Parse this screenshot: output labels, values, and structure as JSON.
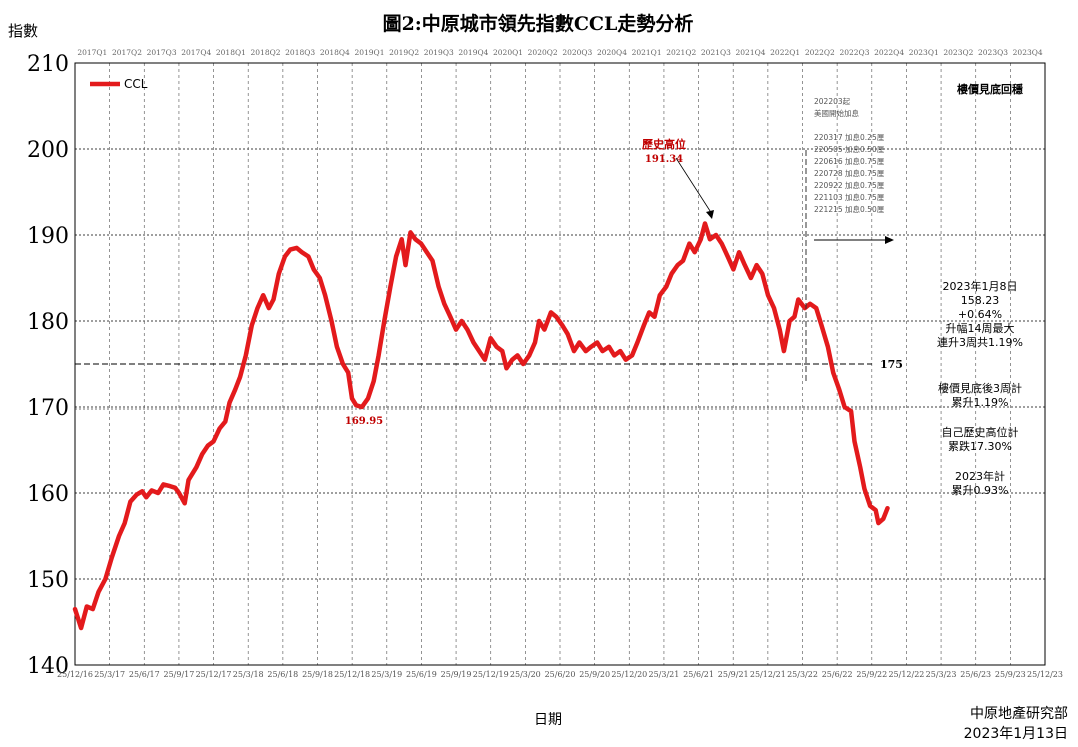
{
  "chart_data": {
    "type": "line",
    "title": "圖2:中原城市領先指數CCL走勢分析",
    "ylabel": "指數",
    "xlabel": "日期",
    "ylim": [
      140,
      210
    ],
    "yticks": [
      140,
      150,
      160,
      170,
      180,
      190,
      200,
      210
    ],
    "xlim": [
      "2016-12-25",
      "2023-12-25"
    ],
    "x_tick_labels": [
      "25/12/16",
      "25/3/17",
      "25/6/17",
      "25/9/17",
      "25/12/17",
      "25/3/18",
      "25/6/18",
      "25/9/18",
      "25/12/18",
      "25/3/19",
      "25/6/19",
      "25/9/19",
      "25/12/19",
      "25/3/20",
      "25/6/20",
      "25/9/20",
      "25/12/20",
      "25/3/21",
      "25/6/21",
      "25/9/21",
      "25/12/21",
      "25/3/22",
      "25/6/22",
      "25/9/22",
      "25/12/22",
      "25/3/23",
      "25/6/23",
      "25/9/23",
      "25/12/23"
    ],
    "quarter_labels": [
      "2017Q1",
      "2017Q2",
      "2017Q3",
      "2017Q4",
      "2018Q1",
      "2018Q2",
      "2018Q3",
      "2018Q4",
      "2019Q1",
      "2019Q2",
      "2019Q3",
      "2019Q4",
      "2020Q1",
      "2020Q2",
      "2020Q3",
      "2020Q4",
      "2021Q1",
      "2021Q2",
      "2021Q3",
      "2021Q4",
      "2022Q1",
      "2022Q2",
      "2022Q3",
      "2022Q4",
      "2023Q1",
      "2023Q2",
      "2023Q3",
      "2023Q4"
    ],
    "grid": true,
    "legend": {
      "position": "top-left",
      "entries": [
        "CCL"
      ]
    },
    "series": [
      {
        "name": "CCL",
        "color": "#e31a1c",
        "points": [
          [
            "2016-12-25",
            146.5
          ],
          [
            "2017-01-10",
            144.3
          ],
          [
            "2017-01-25",
            146.8
          ],
          [
            "2017-02-10",
            146.5
          ],
          [
            "2017-02-25",
            148.5
          ],
          [
            "2017-03-15",
            150.0
          ],
          [
            "2017-04-01",
            152.5
          ],
          [
            "2017-04-20",
            155.0
          ],
          [
            "2017-05-05",
            156.5
          ],
          [
            "2017-05-20",
            159.0
          ],
          [
            "2017-06-05",
            159.8
          ],
          [
            "2017-06-20",
            160.2
          ],
          [
            "2017-07-01",
            159.5
          ],
          [
            "2017-07-15",
            160.3
          ],
          [
            "2017-08-01",
            160.0
          ],
          [
            "2017-08-15",
            161.0
          ],
          [
            "2017-09-01",
            160.8
          ],
          [
            "2017-09-15",
            160.6
          ],
          [
            "2017-09-25",
            160.0
          ],
          [
            "2017-10-10",
            158.8
          ],
          [
            "2017-10-20",
            161.5
          ],
          [
            "2017-11-10",
            163.0
          ],
          [
            "2017-11-25",
            164.5
          ],
          [
            "2017-12-10",
            165.5
          ],
          [
            "2017-12-25",
            166.0
          ],
          [
            "2018-01-10",
            167.5
          ],
          [
            "2018-01-25",
            168.3
          ],
          [
            "2018-02-05",
            170.5
          ],
          [
            "2018-02-20",
            172.0
          ],
          [
            "2018-03-05",
            173.5
          ],
          [
            "2018-03-20",
            176.0
          ],
          [
            "2018-04-05",
            179.5
          ],
          [
            "2018-04-20",
            181.5
          ],
          [
            "2018-05-05",
            183.0
          ],
          [
            "2018-05-20",
            181.5
          ],
          [
            "2018-06-01",
            182.5
          ],
          [
            "2018-06-15",
            185.5
          ],
          [
            "2018-07-01",
            187.5
          ],
          [
            "2018-07-15",
            188.3
          ],
          [
            "2018-08-01",
            188.5
          ],
          [
            "2018-08-15",
            188.0
          ],
          [
            "2018-09-01",
            187.5
          ],
          [
            "2018-09-15",
            186.0
          ],
          [
            "2018-10-01",
            185.0
          ],
          [
            "2018-10-15",
            183.0
          ],
          [
            "2018-11-01",
            180.0
          ],
          [
            "2018-11-15",
            177.0
          ],
          [
            "2018-12-01",
            175.0
          ],
          [
            "2018-12-15",
            174.0
          ],
          [
            "2018-12-25",
            171.0
          ],
          [
            "2019-01-05",
            170.2
          ],
          [
            "2019-01-20",
            170.0
          ],
          [
            "2019-02-05",
            171.0
          ],
          [
            "2019-02-20",
            173.0
          ],
          [
            "2019-03-05",
            176.0
          ],
          [
            "2019-03-20",
            180.0
          ],
          [
            "2019-04-05",
            184.0
          ],
          [
            "2019-04-20",
            187.5
          ],
          [
            "2019-05-05",
            189.5
          ],
          [
            "2019-05-15",
            186.5
          ],
          [
            "2019-05-28",
            190.3
          ],
          [
            "2019-06-10",
            189.5
          ],
          [
            "2019-06-25",
            189.0
          ],
          [
            "2019-07-10",
            188.0
          ],
          [
            "2019-07-25",
            187.0
          ],
          [
            "2019-08-10",
            184.0
          ],
          [
            "2019-08-25",
            182.0
          ],
          [
            "2019-09-10",
            180.5
          ],
          [
            "2019-09-25",
            179.0
          ],
          [
            "2019-10-10",
            180.0
          ],
          [
            "2019-10-25",
            179.0
          ],
          [
            "2019-11-10",
            177.5
          ],
          [
            "2019-11-25",
            176.5
          ],
          [
            "2019-12-10",
            175.5
          ],
          [
            "2019-12-25",
            178.0
          ],
          [
            "2020-01-10",
            177.0
          ],
          [
            "2020-01-25",
            176.5
          ],
          [
            "2020-02-05",
            174.5
          ],
          [
            "2020-02-20",
            175.5
          ],
          [
            "2020-03-05",
            176.0
          ],
          [
            "2020-03-20",
            175.0
          ],
          [
            "2020-04-05",
            176.0
          ],
          [
            "2020-04-20",
            177.5
          ],
          [
            "2020-05-01",
            180.0
          ],
          [
            "2020-05-15",
            179.0
          ],
          [
            "2020-06-01",
            181.0
          ],
          [
            "2020-06-15",
            180.5
          ],
          [
            "2020-07-01",
            179.5
          ],
          [
            "2020-07-15",
            178.5
          ],
          [
            "2020-08-01",
            176.5
          ],
          [
            "2020-08-15",
            177.5
          ],
          [
            "2020-09-01",
            176.5
          ],
          [
            "2020-09-15",
            177.0
          ],
          [
            "2020-10-01",
            177.5
          ],
          [
            "2020-10-15",
            176.5
          ],
          [
            "2020-11-01",
            177.0
          ],
          [
            "2020-11-15",
            176.0
          ],
          [
            "2020-12-01",
            176.5
          ],
          [
            "2020-12-15",
            175.5
          ],
          [
            "2021-01-01",
            176.0
          ],
          [
            "2021-01-15",
            177.5
          ],
          [
            "2021-02-01",
            179.5
          ],
          [
            "2021-02-15",
            181.0
          ],
          [
            "2021-03-01",
            180.5
          ],
          [
            "2021-03-15",
            183.0
          ],
          [
            "2021-04-01",
            184.0
          ],
          [
            "2021-04-15",
            185.5
          ],
          [
            "2021-05-01",
            186.5
          ],
          [
            "2021-05-15",
            187.0
          ],
          [
            "2021-06-01",
            189.0
          ],
          [
            "2021-06-15",
            188.0
          ],
          [
            "2021-07-01",
            189.5
          ],
          [
            "2021-07-12",
            191.34
          ],
          [
            "2021-07-25",
            189.5
          ],
          [
            "2021-08-10",
            190.0
          ],
          [
            "2021-08-25",
            189.0
          ],
          [
            "2021-09-10",
            187.5
          ],
          [
            "2021-09-25",
            186.0
          ],
          [
            "2021-10-10",
            188.0
          ],
          [
            "2021-10-25",
            186.5
          ],
          [
            "2021-11-10",
            185.0
          ],
          [
            "2021-11-25",
            186.5
          ],
          [
            "2021-12-10",
            185.5
          ],
          [
            "2021-12-25",
            183.0
          ],
          [
            "2022-01-10",
            181.5
          ],
          [
            "2022-01-25",
            179.0
          ],
          [
            "2022-02-05",
            176.5
          ],
          [
            "2022-02-20",
            180.0
          ],
          [
            "2022-03-05",
            180.5
          ],
          [
            "2022-03-15",
            182.5
          ],
          [
            "2022-04-01",
            181.5
          ],
          [
            "2022-04-15",
            182.0
          ],
          [
            "2022-05-01",
            181.5
          ],
          [
            "2022-05-15",
            179.5
          ],
          [
            "2022-06-01",
            177.0
          ],
          [
            "2022-06-15",
            174.0
          ],
          [
            "2022-07-01",
            172.0
          ],
          [
            "2022-07-15",
            170.0
          ],
          [
            "2022-08-01",
            169.5
          ],
          [
            "2022-08-10",
            166.0
          ],
          [
            "2022-08-25",
            163.0
          ],
          [
            "2022-09-05",
            160.5
          ],
          [
            "2022-09-20",
            158.5
          ],
          [
            "2022-10-05",
            158.0
          ],
          [
            "2022-10-12",
            156.5
          ],
          [
            "2022-10-25",
            157.0
          ],
          [
            "2022-11-05",
            158.23
          ]
        ]
      }
    ],
    "reference_line": {
      "value": 175,
      "label": "175"
    },
    "annotations": {
      "peak_label": "歷史高位",
      "peak_value": "191.34",
      "trough_value": "169.95",
      "top_right": "樓價見底回穩",
      "rate_box": [
        "202203起",
        "美國開始加息",
        "220317  加息0.25厘",
        "220505  加息0.50厘",
        "220616  加息0.75厘",
        "220728  加息0.75厘",
        "220922  加息0.75厘",
        "221103  加息0.75厘",
        "221215  加息0.50厘"
      ],
      "latest_note": [
        "2023年1月8日",
        "158.23",
        "+0.64%",
        "升幅14周最大",
        "連升3周共1.19%"
      ],
      "since_bottom": [
        "樓價見底後3周計",
        "累升1.19%"
      ],
      "from_peak": [
        "自己歷史高位計",
        "累跌17.30%"
      ],
      "ytd": [
        "2023年計",
        "累升0.93%"
      ],
      "source": "中原地產研究部",
      "date": "2023年1月13日"
    }
  }
}
